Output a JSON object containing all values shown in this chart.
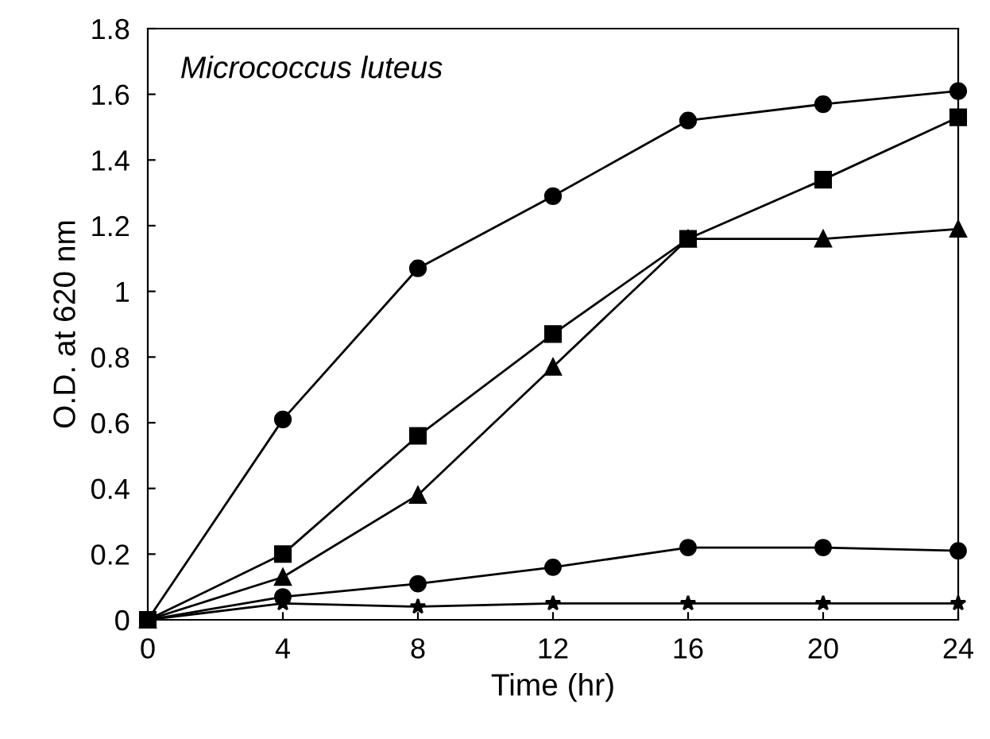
{
  "chart_data": {
    "type": "line",
    "xlabel": "Time (hr)",
    "ylabel": "O.D. at 620 nm",
    "annotations": [
      "Micrococcus luteus"
    ],
    "x": [
      0,
      4,
      8,
      12,
      16,
      20,
      24
    ],
    "series": [
      {
        "color": "#000000",
        "marker": "circle",
        "values": [
          0,
          0.61,
          1.07,
          1.29,
          1.52,
          1.57,
          1.61
        ]
      },
      {
        "color": "#000000",
        "marker": "square",
        "values": [
          0,
          0.2,
          0.56,
          0.87,
          1.16,
          1.34,
          1.53
        ]
      },
      {
        "color": "#000000",
        "marker": "triangle",
        "values": [
          0,
          0.13,
          0.38,
          0.77,
          1.16,
          1.16,
          1.19
        ]
      },
      {
        "color": "#000000",
        "marker": "circle",
        "values": [
          0,
          0.07,
          0.11,
          0.16,
          0.22,
          0.22,
          0.21
        ]
      },
      {
        "color": "#000000",
        "marker": "star",
        "values": [
          0,
          0.05,
          0.04,
          0.05,
          0.05,
          0.05,
          0.05
        ]
      }
    ],
    "xlim": [
      0,
      24
    ],
    "xticks": [
      0,
      4,
      8,
      12,
      16,
      20,
      24
    ],
    "ylim": [
      0,
      1.8
    ],
    "yticks": [
      0,
      0.2,
      0.4,
      0.6,
      0.8,
      1,
      1.2,
      1.4,
      1.6,
      1.8
    ],
    "grid": false,
    "legend": false,
    "line_style": "solid"
  }
}
